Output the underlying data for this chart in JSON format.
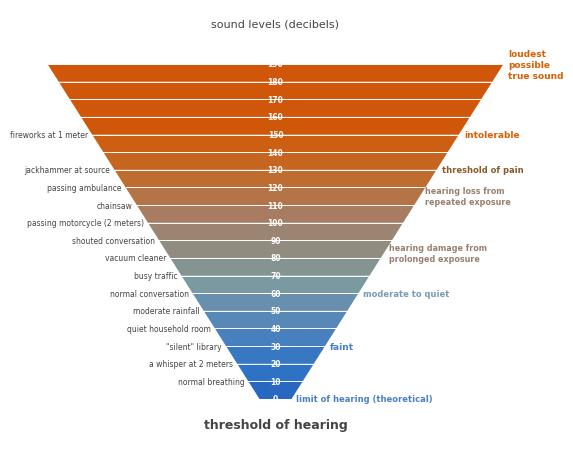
{
  "title_top": "sound levels (decibels)",
  "title_bottom": "threshold of hearing",
  "levels": [
    0,
    10,
    20,
    30,
    40,
    50,
    60,
    70,
    80,
    90,
    100,
    110,
    120,
    130,
    140,
    150,
    160,
    170,
    180,
    190
  ],
  "left_labels": {
    "150": "fireworks at 1 meter",
    "130": "jackhammer at source",
    "120": "passing ambulance",
    "110": "chainsaw",
    "100": "passing motorcycle (2 meters)",
    "90": "shouted conversation",
    "80": "vacuum cleaner",
    "70": "busy traffic",
    "60": "normal conversation",
    "50": "moderate rainfall",
    "40": "quiet household room",
    "30": "\"silent\" library",
    "20": "a whisper at 2 meters",
    "10": "normal breathing"
  },
  "colors_by_band": {
    "190": "#d0570a",
    "180": "#d0570a",
    "170": "#d0570a",
    "160": "#c86020",
    "150": "#c06828",
    "140": "#b87050",
    "130": "#b07860",
    "120": "#a88070",
    "110": "#9e8878",
    "100": "#949080",
    "90": "#8a9890",
    "80": "#7e98a0",
    "70": "#72929e",
    "60": "#668aaa",
    "50": "#5880b4",
    "40": "#4878bc",
    "30": "#3870c0",
    "20": "#3070c0",
    "10": "#2c6ec0",
    "0": "#2868be"
  },
  "background": "#ffffff",
  "text_color_dark": "#444444",
  "text_color_orange": "#d95f02",
  "text_color_brown": "#8b5a2b",
  "text_color_mauve": "#9a8070",
  "text_color_blue": "#4a80c8",
  "line_color": "#ffffff"
}
